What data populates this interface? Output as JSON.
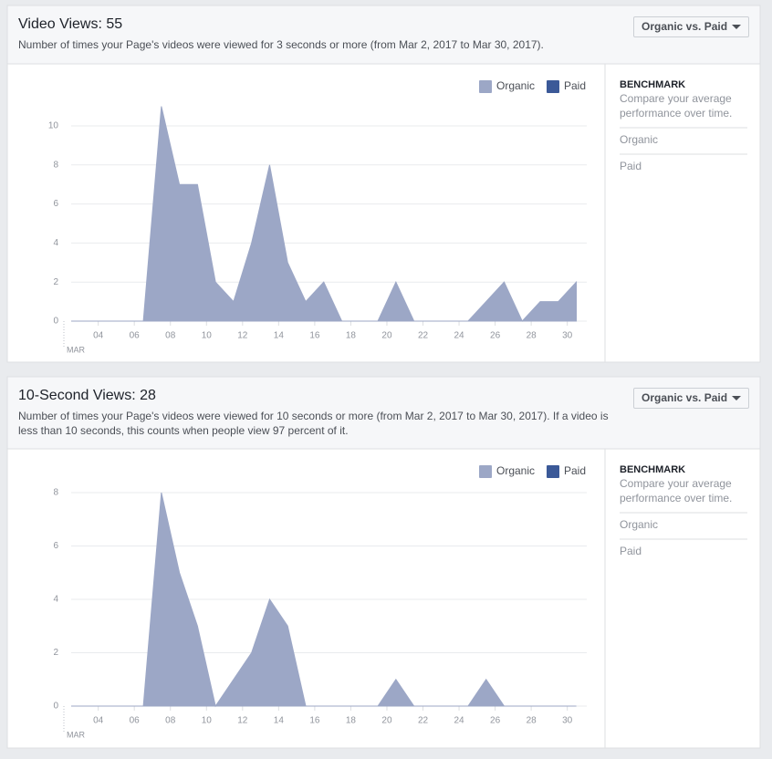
{
  "chart_data": [
    {
      "type": "area",
      "title": "Video Views: 55",
      "subtitle": "Number of times your Page's videos were viewed for 3 seconds or more (from Mar 2, 2017 to Mar 30, 2017).",
      "x_label": "MAR",
      "categories": [
        null,
        null,
        "04",
        null,
        "06",
        null,
        "08",
        null,
        "10",
        null,
        "12",
        null,
        "14",
        null,
        "16",
        null,
        "18",
        null,
        "20",
        null,
        "22",
        null,
        "24",
        null,
        "26",
        null,
        "28",
        null,
        "30"
      ],
      "series": [
        {
          "name": "Organic",
          "color": "#9ca7c6",
          "values": [
            0,
            0,
            0,
            0,
            0,
            11,
            7,
            7,
            2,
            1,
            4,
            8,
            3,
            1,
            2,
            0,
            0,
            0,
            2,
            0,
            0,
            0,
            0,
            1,
            2,
            0,
            1,
            1,
            2
          ]
        }
      ],
      "legend": [
        {
          "name": "Organic",
          "color": "#9ca7c6"
        },
        {
          "name": "Paid",
          "color": "#3b5998"
        }
      ],
      "ylim": [
        0,
        11
      ],
      "yticks": [
        0,
        2,
        4,
        6,
        8,
        10
      ],
      "grid": true
    },
    {
      "type": "area",
      "title": "10-Second Views: 28",
      "subtitle": "Number of times your Page's videos were viewed for 10 seconds or more (from Mar 2, 2017 to Mar 30, 2017). If a video is less than 10 seconds, this counts when people view 97 percent of it.",
      "x_label": "MAR",
      "categories": [
        null,
        null,
        "04",
        null,
        "06",
        null,
        "08",
        null,
        "10",
        null,
        "12",
        null,
        "14",
        null,
        "16",
        null,
        "18",
        null,
        "20",
        null,
        "22",
        null,
        "24",
        null,
        "26",
        null,
        "28",
        null,
        "30"
      ],
      "series": [
        {
          "name": "Organic",
          "color": "#9ca7c6",
          "values": [
            0,
            0,
            0,
            0,
            0,
            8,
            5,
            3,
            0,
            1,
            2,
            4,
            3,
            0,
            0,
            0,
            0,
            0,
            1,
            0,
            0,
            0,
            0,
            1,
            0,
            0,
            0,
            0,
            0
          ]
        }
      ],
      "legend": [
        {
          "name": "Organic",
          "color": "#9ca7c6"
        },
        {
          "name": "Paid",
          "color": "#3b5998"
        }
      ],
      "ylim": [
        0,
        8
      ],
      "yticks": [
        0,
        2,
        4,
        6,
        8
      ],
      "grid": true
    }
  ],
  "panels": [
    {
      "button": "Organic vs. Paid",
      "benchmark": {
        "title": "BENCHMARK",
        "text": "Compare your average performance over time.",
        "items": [
          "Organic",
          "Paid"
        ]
      }
    },
    {
      "button": "Organic vs. Paid",
      "benchmark": {
        "title": "BENCHMARK",
        "text": "Compare your average performance over time.",
        "items": [
          "Organic",
          "Paid"
        ]
      }
    }
  ]
}
